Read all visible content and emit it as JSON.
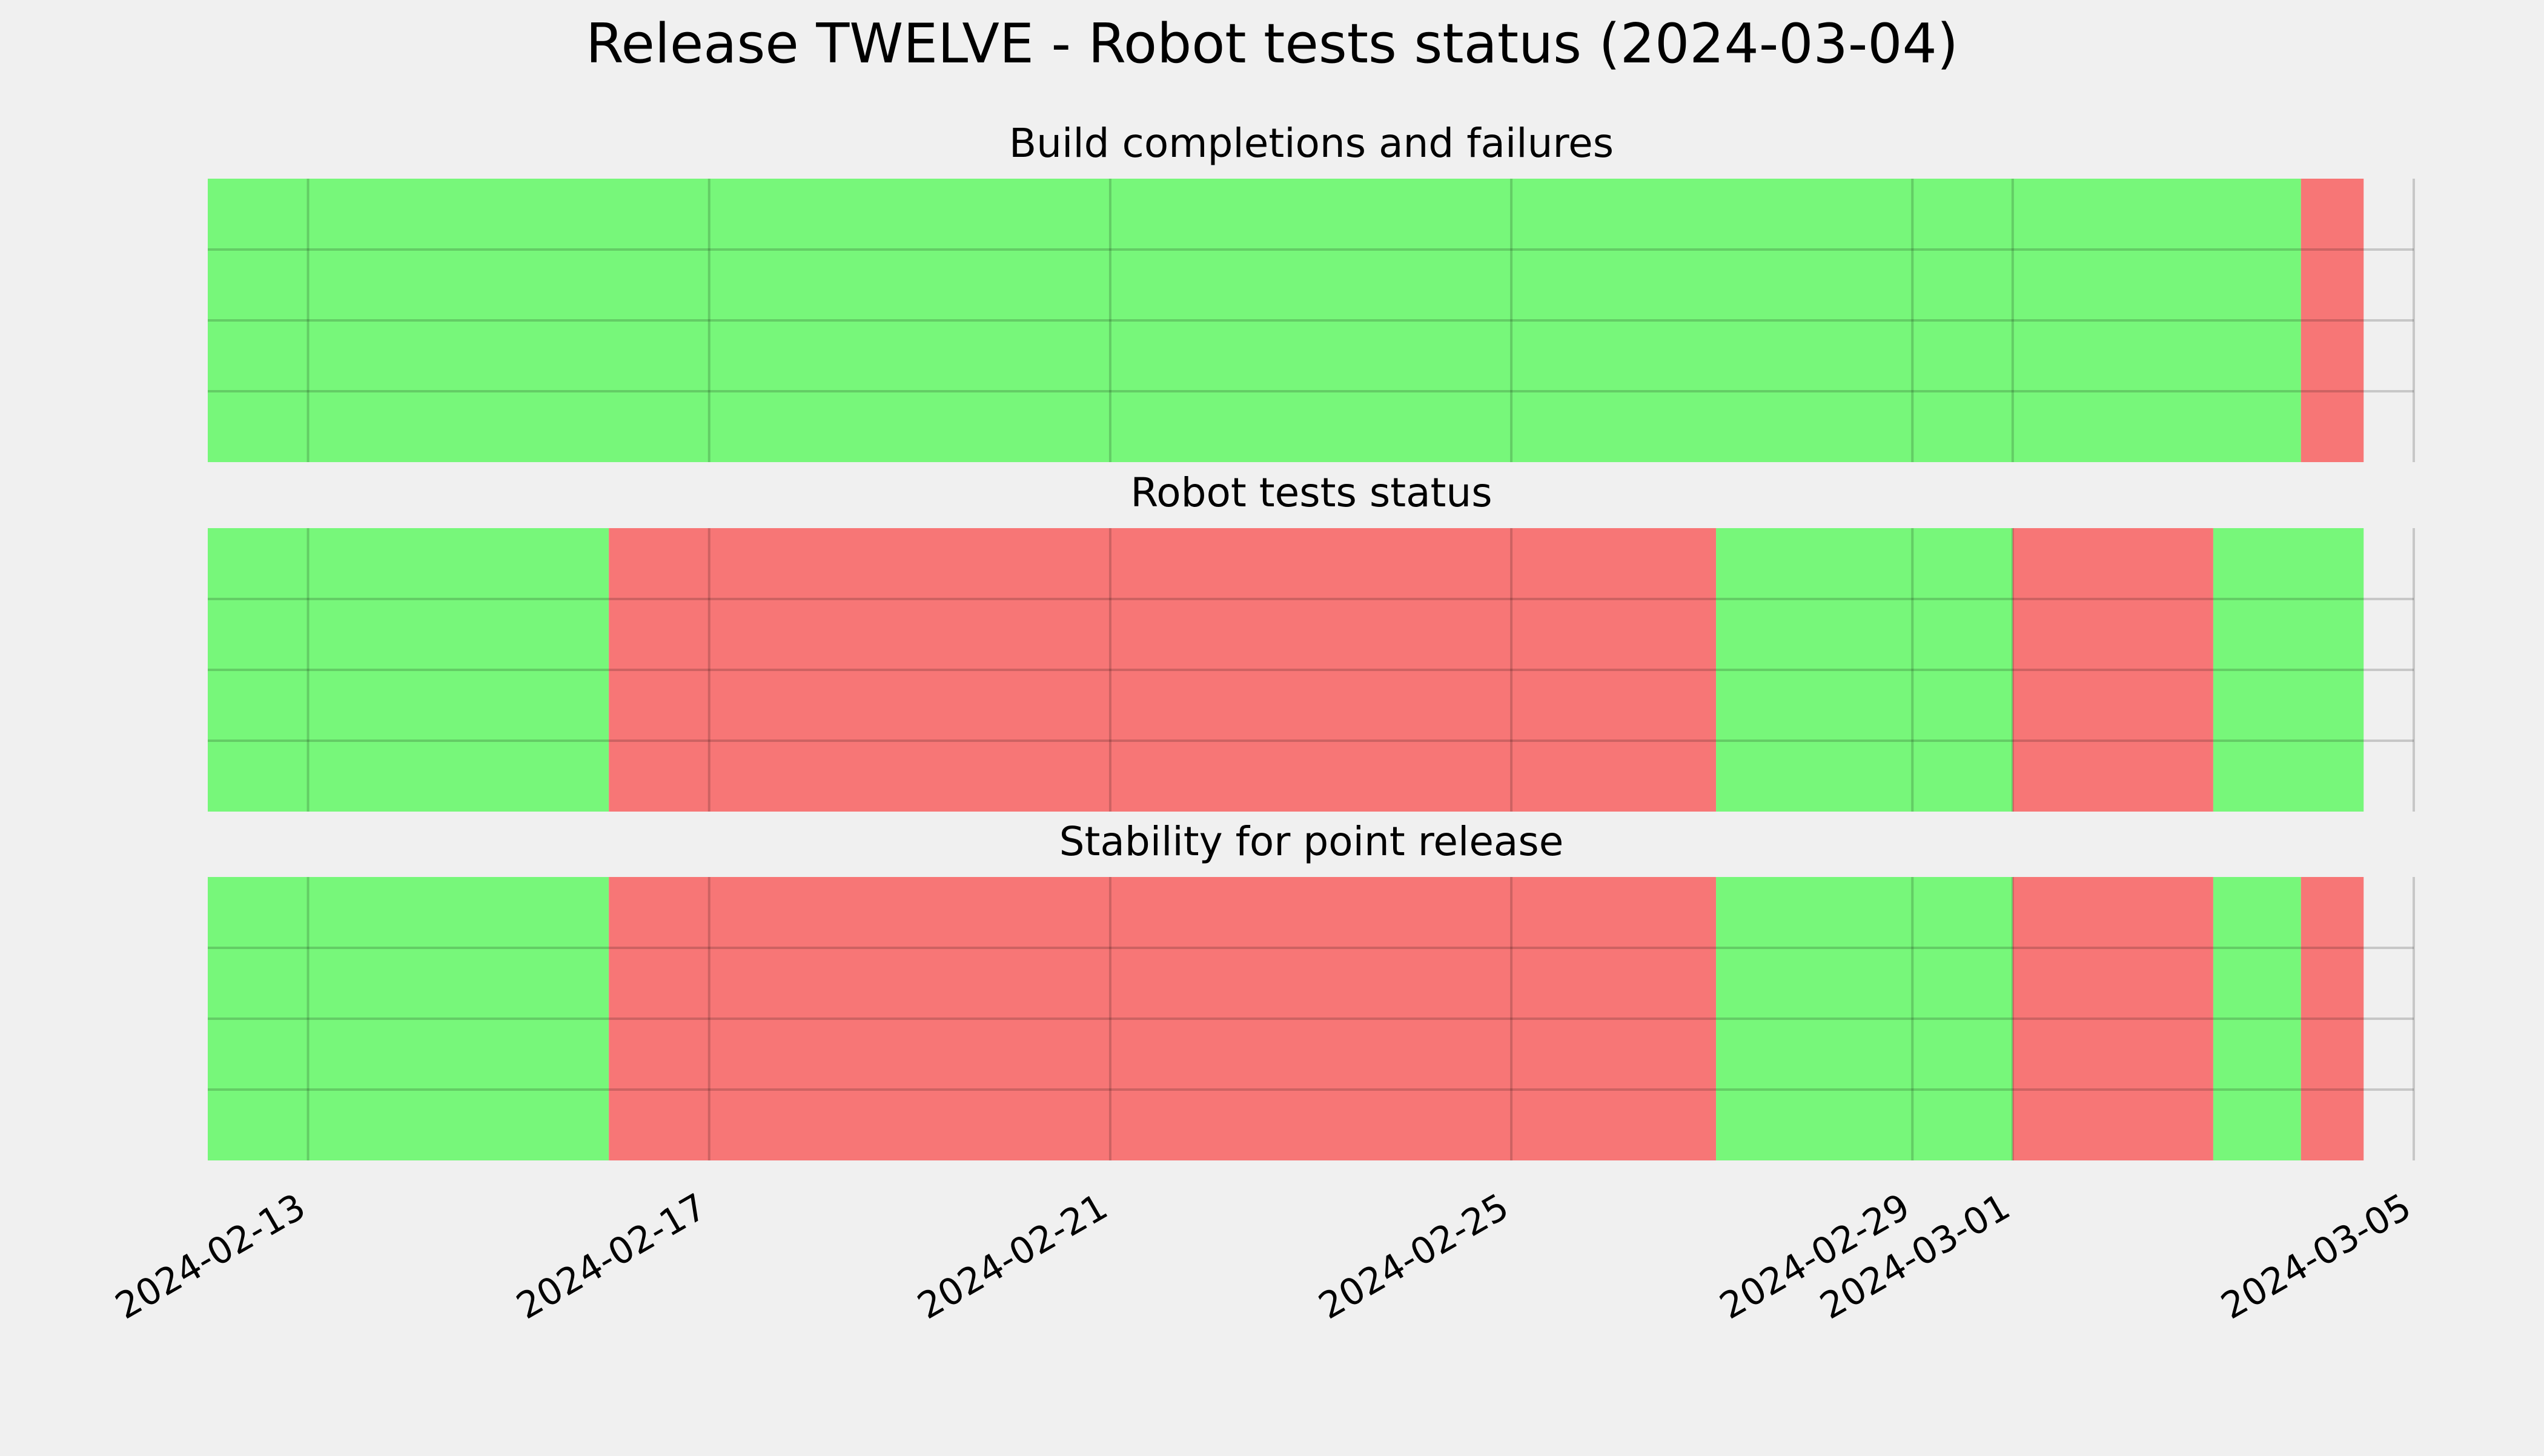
{
  "chart_data": {
    "type": "timeline",
    "title": "Release TWELVE - Robot tests status (2024-03-04)",
    "x_axis": {
      "type": "date",
      "ticks": [
        "2024-02-13",
        "2024-02-17",
        "2024-02-21",
        "2024-02-25",
        "2024-02-29",
        "2024-03-01",
        "2024-03-05"
      ],
      "xlim": [
        "2024-02-12T00:00",
        "2024-03-05T00:00"
      ]
    },
    "grid": true,
    "colors": {
      "pass": "#77f77a",
      "fail": "#f77676",
      "background": "#f0f0f0",
      "grid": "#c8c8c8"
    },
    "panels": [
      {
        "title": "Build completions and failures",
        "segments": [
          {
            "start": "2024-02-12T00:00",
            "end": "2024-03-03T21:00",
            "status": "pass"
          },
          {
            "start": "2024-03-03T21:00",
            "end": "2024-03-04T12:00",
            "status": "fail"
          }
        ]
      },
      {
        "title": "Robot tests status",
        "segments": [
          {
            "start": "2024-02-12T00:00",
            "end": "2024-02-16T00:00",
            "status": "pass"
          },
          {
            "start": "2024-02-16T00:00",
            "end": "2024-02-27T01:00",
            "status": "fail"
          },
          {
            "start": "2024-02-27T01:00",
            "end": "2024-03-01T00:00",
            "status": "pass"
          },
          {
            "start": "2024-03-01T00:00",
            "end": "2024-03-03T00:00",
            "status": "fail"
          },
          {
            "start": "2024-03-03T00:00",
            "end": "2024-03-04T12:00",
            "status": "pass"
          }
        ]
      },
      {
        "title": "Stability for point release",
        "segments": [
          {
            "start": "2024-02-12T00:00",
            "end": "2024-02-16T00:00",
            "status": "pass"
          },
          {
            "start": "2024-02-16T00:00",
            "end": "2024-02-27T01:00",
            "status": "fail"
          },
          {
            "start": "2024-02-27T01:00",
            "end": "2024-03-01T00:00",
            "status": "pass"
          },
          {
            "start": "2024-03-01T00:00",
            "end": "2024-03-03T00:00",
            "status": "fail"
          },
          {
            "start": "2024-03-03T00:00",
            "end": "2024-03-03T21:00",
            "status": "pass"
          },
          {
            "start": "2024-03-03T21:00",
            "end": "2024-03-04T12:00",
            "status": "fail"
          }
        ]
      }
    ]
  }
}
